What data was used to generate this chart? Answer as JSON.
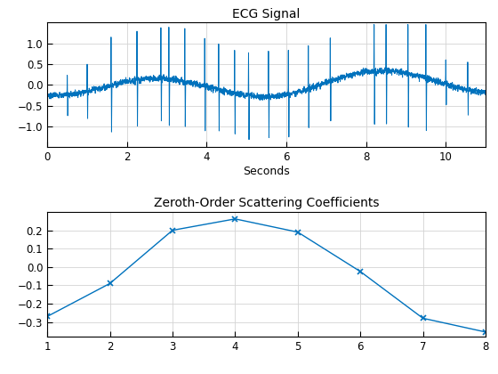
{
  "ecg_title": "ECG Signal",
  "ecg_xlabel": "Seconds",
  "ecg_xlim": [
    0,
    11.0
  ],
  "ecg_ylim": [
    -1.5,
    1.5
  ],
  "ecg_yticks": [
    -1,
    -0.5,
    0,
    0.5,
    1
  ],
  "ecg_xticks": [
    0,
    2,
    4,
    6,
    8,
    10
  ],
  "ecg_color": "#0072BD",
  "ecg_linewidth": 0.7,
  "scatter_title": "Zeroth-Order Scattering Coefficients",
  "scatter_x": [
    1,
    2,
    3,
    4,
    5,
    6,
    7,
    8
  ],
  "scatter_y": [
    -0.27,
    -0.09,
    0.2,
    0.262,
    0.19,
    -0.025,
    -0.28,
    -0.355
  ],
  "scatter_xlim": [
    1,
    8
  ],
  "scatter_ylim": [
    -0.38,
    0.3
  ],
  "scatter_yticks": [
    -0.3,
    -0.2,
    -0.1,
    0,
    0.1,
    0.2
  ],
  "scatter_xticks": [
    1,
    2,
    3,
    4,
    5,
    6,
    7,
    8
  ],
  "scatter_color": "#0072BD",
  "scatter_linewidth": 1.0,
  "scatter_marker": "x",
  "scatter_markersize": 5,
  "grid_color": "#D3D3D3",
  "bg_color": "#FFFFFF",
  "ecg_title_fontsize": 10,
  "scatter_title_fontsize": 10,
  "label_fontsize": 9,
  "tick_fontsize": 8.5
}
